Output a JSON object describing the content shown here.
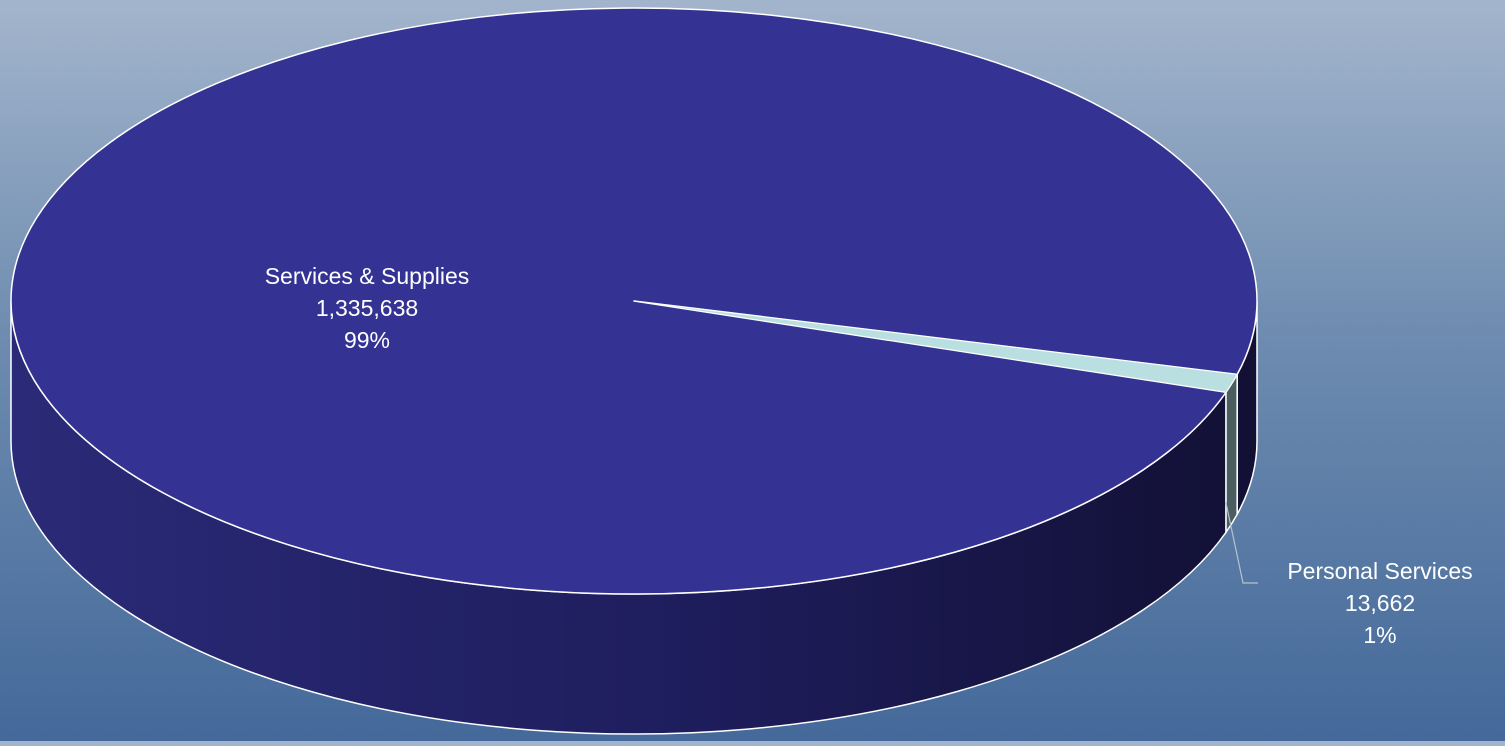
{
  "chart_data": {
    "type": "pie",
    "style": "3d",
    "slices": [
      {
        "name": "Services & Supplies",
        "value": 1335638,
        "value_label": "1,335,638",
        "percent_label": "99%",
        "top_color": "#343394",
        "side_color": "#1c1a56"
      },
      {
        "name": "Personal Services",
        "value": 13662,
        "value_label": "13,662",
        "percent_label": "1%",
        "top_color": "#b9dfe0",
        "side_color": "#4a5e60"
      }
    ],
    "legend": "none",
    "title": ""
  }
}
